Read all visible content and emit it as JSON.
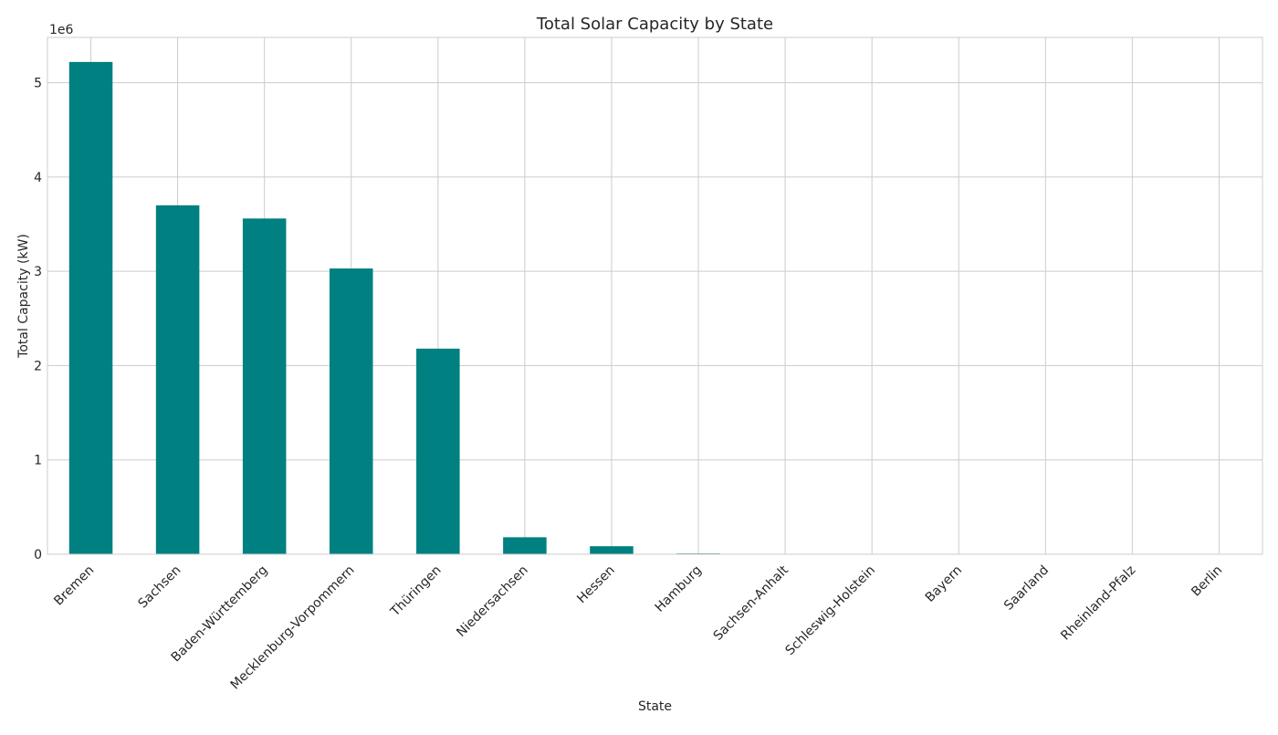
{
  "chart_data": {
    "type": "bar",
    "title": "Total Solar Capacity by State",
    "xlabel": "State",
    "ylabel": "Total Capacity (kW)",
    "y_multiplier_label": "1e6",
    "categories": [
      "Bremen",
      "Sachsen",
      "Baden-Württemberg",
      "Mecklenburg-Vorpommern",
      "Thüringen",
      "Niedersachsen",
      "Hessen",
      "Hamburg",
      "Sachsen-Anhalt",
      "Schleswig-Holstein",
      "Bayern",
      "Saarland",
      "Rheinland-Pfalz",
      "Berlin"
    ],
    "values": [
      5220000,
      3700000,
      3560000,
      3030000,
      2180000,
      180000,
      85000,
      8000,
      1500,
      800,
      500,
      300,
      200,
      100
    ],
    "yticks": [
      0,
      1,
      2,
      3,
      4,
      5
    ],
    "ylim": [
      0,
      5.48
    ],
    "bar_color": "#008080",
    "grid": true,
    "legend": "none"
  }
}
